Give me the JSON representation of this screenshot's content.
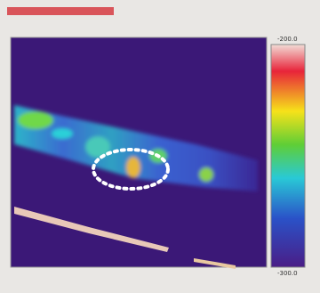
{
  "colorbar": {
    "top": "-200.0",
    "bottom": "-300.0"
  }
}
